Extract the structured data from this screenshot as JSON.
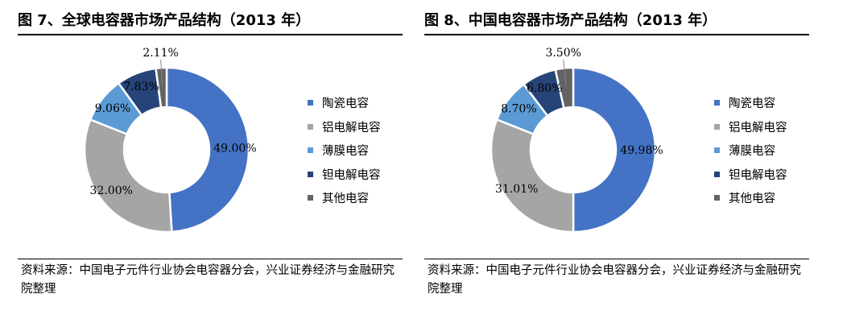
{
  "charts": [
    {
      "title": "图 7、全球电容器市场产品结构（2013 年）",
      "source": "资料来源：中国电子元件行业协会电容器分会，兴业证券经济与金融研究院整理"
    },
    {
      "title": "图 8、中国电容器市场产品结构（2013 年）",
      "source": "资料来源：中国电子元件行业协会电容器分会，兴业证券经济与金融研究院整理"
    }
  ],
  "chart_data": [
    {
      "type": "pie",
      "donut": true,
      "title": "图 7、全球电容器市场产品结构（2013 年）",
      "categories": [
        "陶瓷电容",
        "铝电解电容",
        "薄膜电容",
        "钽电解电容",
        "其他电容"
      ],
      "values": [
        49.0,
        32.0,
        9.06,
        7.83,
        2.11
      ],
      "labels": [
        "49.00%",
        "32.00%",
        "9.06%",
        "7.83%",
        "2.11%"
      ],
      "colors": [
        "#4472C4",
        "#A5A5A5",
        "#5B9BD5",
        "#264478",
        "#636363"
      ],
      "legend_position": "right"
    },
    {
      "type": "pie",
      "donut": true,
      "title": "图 8、中国电容器市场产品结构（2013 年）",
      "categories": [
        "陶瓷电容",
        "铝电解电容",
        "薄膜电容",
        "钽电解电容",
        "其他电容"
      ],
      "values": [
        49.98,
        31.01,
        8.7,
        6.8,
        3.5
      ],
      "labels": [
        "49.98%",
        "31.01%",
        "8.70%",
        "6.80%",
        "3.50%"
      ],
      "colors": [
        "#4472C4",
        "#A5A5A5",
        "#5B9BD5",
        "#264478",
        "#636363"
      ],
      "legend_position": "right"
    }
  ]
}
